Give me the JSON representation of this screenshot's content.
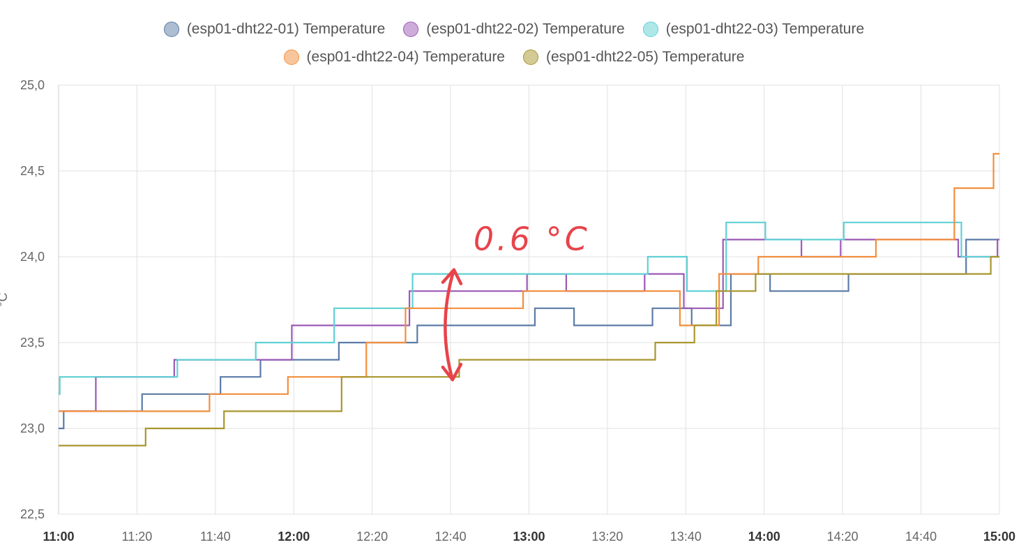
{
  "chart_data": {
    "type": "line",
    "step": true,
    "ylabel": "°C",
    "ylim": [
      22.5,
      25.0
    ],
    "y_ticks": [
      "22,5",
      "23,0",
      "23,5",
      "24,0",
      "24,5",
      "25,0"
    ],
    "xlim": [
      0,
      240
    ],
    "x_ticks": [
      {
        "label": "11:00",
        "min": 0,
        "bold": true
      },
      {
        "label": "11:20",
        "min": 20,
        "bold": false
      },
      {
        "label": "11:40",
        "min": 40,
        "bold": false
      },
      {
        "label": "12:00",
        "min": 60,
        "bold": true
      },
      {
        "label": "12:20",
        "min": 80,
        "bold": false
      },
      {
        "label": "12:40",
        "min": 100,
        "bold": false
      },
      {
        "label": "13:00",
        "min": 120,
        "bold": true
      },
      {
        "label": "13:20",
        "min": 140,
        "bold": false
      },
      {
        "label": "13:40",
        "min": 160,
        "bold": false
      },
      {
        "label": "14:00",
        "min": 180,
        "bold": true
      },
      {
        "label": "14:20",
        "min": 200,
        "bold": false
      },
      {
        "label": "14:40",
        "min": 220,
        "bold": false
      },
      {
        "label": "15:00",
        "min": 240,
        "bold": true
      }
    ],
    "grid": true,
    "legend_position": "top-center",
    "series": [
      {
        "name": "(esp01-dht22-01) Temperature",
        "color": "#5b7ba6",
        "points": [
          [
            0,
            23.0
          ],
          [
            1.3,
            23.1
          ],
          [
            21.3,
            23.2
          ],
          [
            41.3,
            23.3
          ],
          [
            51.5,
            23.4
          ],
          [
            71.5,
            23.5
          ],
          [
            91.5,
            23.6
          ],
          [
            121.5,
            23.7
          ],
          [
            131.5,
            23.6
          ],
          [
            151.5,
            23.7
          ],
          [
            161.5,
            23.6
          ],
          [
            171.5,
            23.9
          ],
          [
            181.5,
            23.8
          ],
          [
            201.5,
            23.9
          ],
          [
            231.5,
            24.1
          ],
          [
            240,
            24.1
          ]
        ]
      },
      {
        "name": "(esp01-dht22-02) Temperature",
        "color": "#9b59b6",
        "points": [
          [
            0,
            23.1
          ],
          [
            9.5,
            23.3
          ],
          [
            29.5,
            23.4
          ],
          [
            59.5,
            23.6
          ],
          [
            89.5,
            23.8
          ],
          [
            119.5,
            23.9
          ],
          [
            129.5,
            23.8
          ],
          [
            149.5,
            23.9
          ],
          [
            159.5,
            23.7
          ],
          [
            169.5,
            24.1
          ],
          [
            189.5,
            24.0
          ],
          [
            199.5,
            24.1
          ],
          [
            229.5,
            24.0
          ],
          [
            239.5,
            24.1
          ],
          [
            240,
            24.1
          ]
        ]
      },
      {
        "name": "(esp01-dht22-03) Temperature",
        "color": "#5fd0d4",
        "points": [
          [
            0,
            23.2
          ],
          [
            0.3,
            23.3
          ],
          [
            30.3,
            23.4
          ],
          [
            50.3,
            23.5
          ],
          [
            70.3,
            23.7
          ],
          [
            90.3,
            23.9
          ],
          [
            150.3,
            24.0
          ],
          [
            160.3,
            23.8
          ],
          [
            170.3,
            24.2
          ],
          [
            180.3,
            24.1
          ],
          [
            200.3,
            24.2
          ],
          [
            230.3,
            24.0
          ],
          [
            240,
            24.0
          ]
        ]
      },
      {
        "name": "(esp01-dht22-04) Temperature",
        "color": "#f28e3c",
        "points": [
          [
            0,
            23.1
          ],
          [
            38.5,
            23.2
          ],
          [
            58.5,
            23.3
          ],
          [
            78.5,
            23.5
          ],
          [
            88.5,
            23.7
          ],
          [
            118.5,
            23.8
          ],
          [
            158.5,
            23.6
          ],
          [
            168.5,
            23.9
          ],
          [
            178.5,
            24.0
          ],
          [
            208.5,
            24.1
          ],
          [
            228.5,
            24.4
          ],
          [
            238.5,
            24.6
          ],
          [
            240,
            24.6
          ]
        ]
      },
      {
        "name": "(esp01-dht22-05) Temperature",
        "color": "#a8962e",
        "points": [
          [
            0,
            22.9
          ],
          [
            22.2,
            23.0
          ],
          [
            42.2,
            23.1
          ],
          [
            72.2,
            23.3
          ],
          [
            102.2,
            23.4
          ],
          [
            152.2,
            23.5
          ],
          [
            162.2,
            23.6
          ],
          [
            167.8,
            23.8
          ],
          [
            177.8,
            23.9
          ],
          [
            237.8,
            24.0
          ],
          [
            240,
            24.0
          ]
        ]
      }
    ],
    "annotations": [
      {
        "text": "0.6 °C",
        "from": [
          100.5,
          23.3
        ],
        "to": [
          100.5,
          23.9
        ],
        "color": "#e8434a"
      }
    ]
  }
}
